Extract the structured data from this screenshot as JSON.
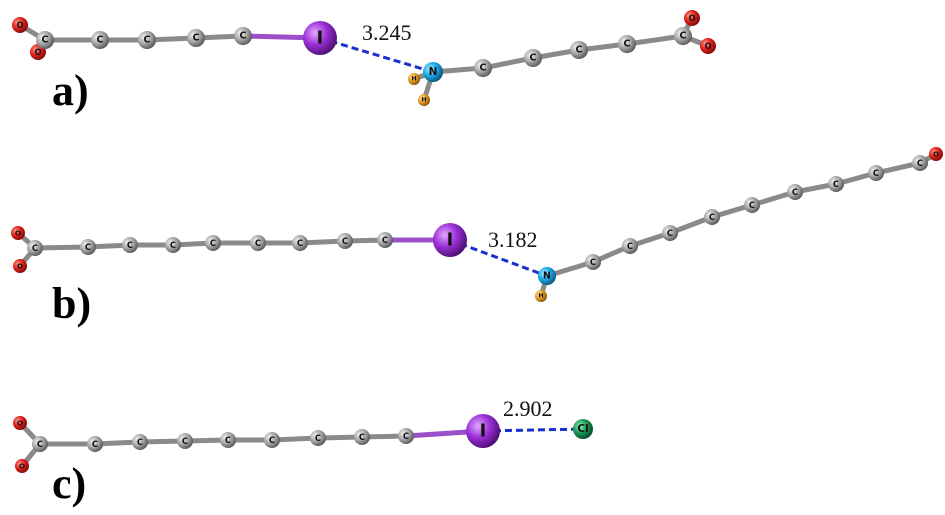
{
  "panels": [
    {
      "label": "a)",
      "distance": "3.245",
      "atoms": [
        "O",
        "O",
        "C",
        "C",
        "C",
        "C",
        "C",
        "I",
        "N",
        "H",
        "H",
        "C",
        "C",
        "C",
        "C",
        "C",
        "O",
        "O"
      ]
    },
    {
      "label": "b)",
      "distance": "3.182",
      "atoms": [
        "O",
        "O",
        "C",
        "C",
        "C",
        "C",
        "C",
        "C",
        "C",
        "C",
        "C",
        "I",
        "N",
        "H",
        "C",
        "C",
        "C",
        "C",
        "C",
        "C",
        "C",
        "C",
        "C",
        "O"
      ]
    },
    {
      "label": "c)",
      "distance": "2.902",
      "atoms": [
        "O",
        "O",
        "C",
        "C",
        "C",
        "C",
        "C",
        "C",
        "C",
        "C",
        "C",
        "I",
        "Cl"
      ]
    }
  ]
}
